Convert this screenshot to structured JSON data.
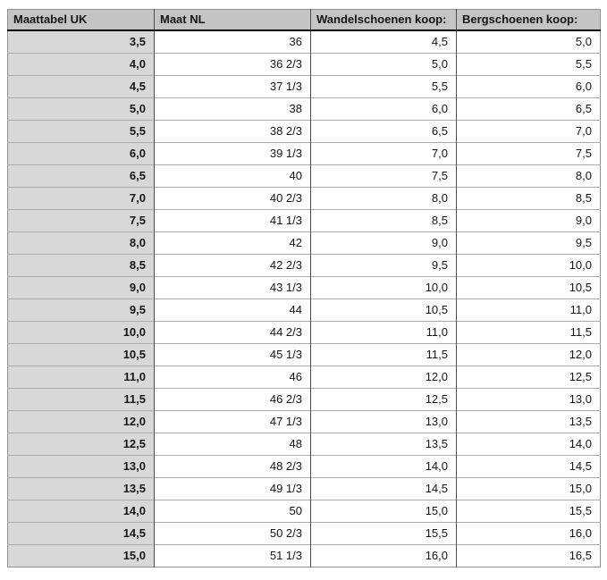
{
  "chart_data": {
    "type": "table",
    "title": "Maattabel UK",
    "columns": [
      "Maattabel UK",
      "Maat NL",
      "Wandelschoenen koop:",
      "Bergschoenen koop:"
    ],
    "rows": [
      [
        "3,5",
        "36",
        "4,5",
        "5,0"
      ],
      [
        "4,0",
        "36 2/3",
        "5,0",
        "5,5"
      ],
      [
        "4,5",
        "37 1/3",
        "5,5",
        "6,0"
      ],
      [
        "5,0",
        "38",
        "6,0",
        "6,5"
      ],
      [
        "5,5",
        "38 2/3",
        "6,5",
        "7,0"
      ],
      [
        "6,0",
        "39 1/3",
        "7,0",
        "7,5"
      ],
      [
        "6,5",
        "40",
        "7,5",
        "8,0"
      ],
      [
        "7,0",
        "40 2/3",
        "8,0",
        "8,5"
      ],
      [
        "7,5",
        "41 1/3",
        "8,5",
        "9,0"
      ],
      [
        "8,0",
        "42",
        "9,0",
        "9,5"
      ],
      [
        "8,5",
        "42 2/3",
        "9,5",
        "10,0"
      ],
      [
        "9,0",
        "43 1/3",
        "10,0",
        "10,5"
      ],
      [
        "9,5",
        "44",
        "10,5",
        "11,0"
      ],
      [
        "10,0",
        "44 2/3",
        "11,0",
        "11,5"
      ],
      [
        "10,5",
        "45 1/3",
        "11,5",
        "12,0"
      ],
      [
        "11,0",
        "46",
        "12,0",
        "12,5"
      ],
      [
        "11,5",
        "46 2/3",
        "12,5",
        "13,0"
      ],
      [
        "12,0",
        "47 1/3",
        "13,0",
        "13,5"
      ],
      [
        "12,5",
        "48",
        "13,5",
        "14,0"
      ],
      [
        "13,0",
        "48 2/3",
        "14,0",
        "14,5"
      ],
      [
        "13,5",
        "49 1/3",
        "14,5",
        "15,0"
      ],
      [
        "14,0",
        "50",
        "15,0",
        "15,5"
      ],
      [
        "14,5",
        "50 2/3",
        "15,5",
        "16,0"
      ],
      [
        "15,0",
        "51 1/3",
        "16,0",
        "16,5"
      ]
    ]
  },
  "colors": {
    "header_bg": "#c4c4c4",
    "row_label_bg": "#d8d8d8",
    "cell_bg": "#ffffff",
    "header_bottom_border": "#000000",
    "column_divider": "#4c4c4c",
    "row_divider": "#ababab",
    "outer_border": "#8f8f8f",
    "text": "#151515"
  }
}
